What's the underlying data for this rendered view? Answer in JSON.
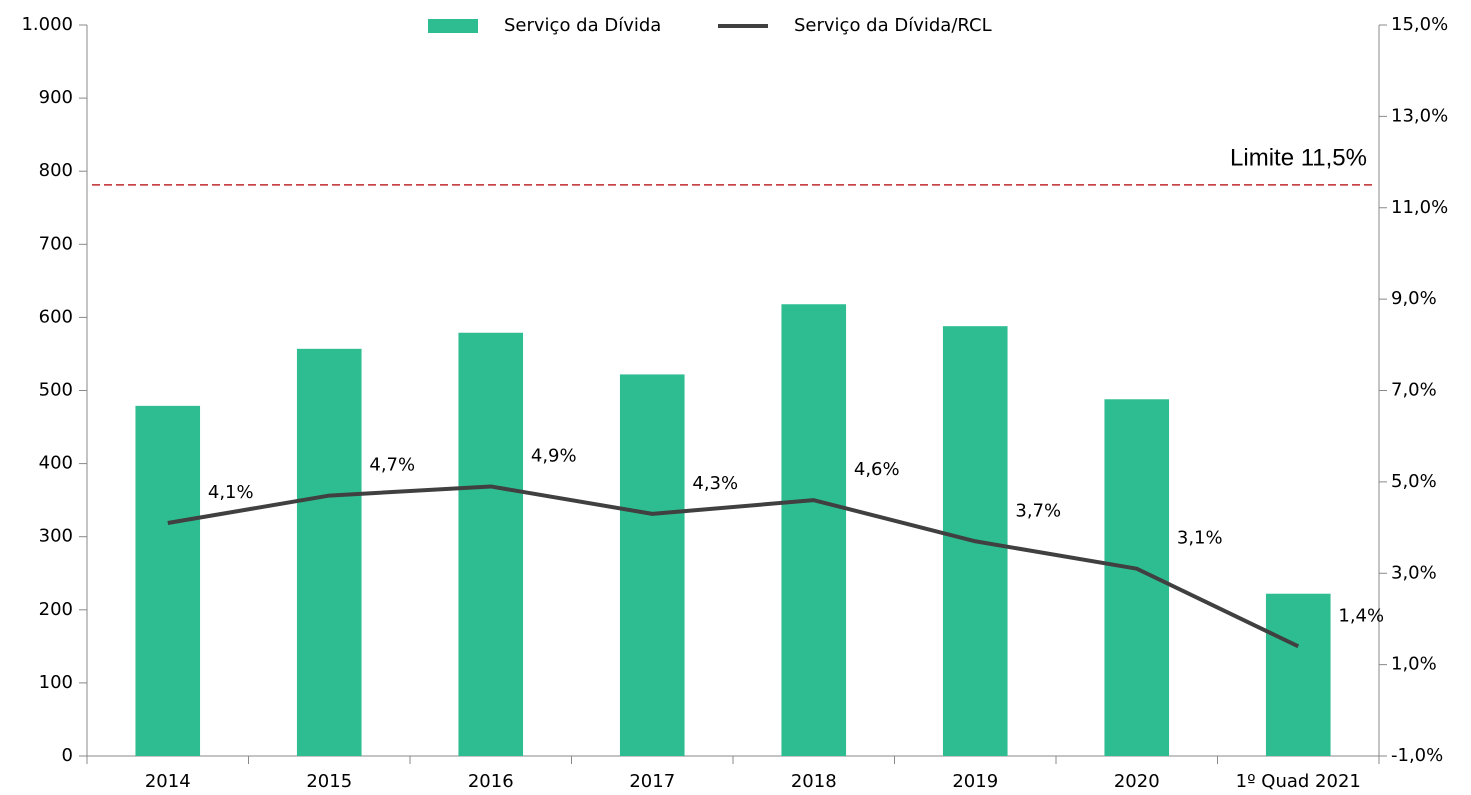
{
  "chart_data": {
    "type": "bar_line",
    "categories": [
      "2014",
      "2015",
      "2016",
      "2017",
      "2018",
      "2019",
      "2020",
      "1º Quad 2021"
    ],
    "series": [
      {
        "name": "Serviço da Dívida",
        "type": "bar",
        "color": "#2ebd91",
        "values": [
          479,
          557,
          579,
          522,
          618,
          588,
          488,
          222
        ]
      },
      {
        "name": "Serviço da Dívida/RCL",
        "type": "line",
        "axis": "y2",
        "color": "#404040",
        "values": [
          4.1,
          4.7,
          4.9,
          4.3,
          4.6,
          3.7,
          3.1,
          1.4
        ],
        "value_labels": [
          "4,1%",
          "4,7%",
          "4,9%",
          "4,3%",
          "4,6%",
          "3,7%",
          "3,1%",
          "1,4%"
        ]
      }
    ],
    "ylim": [
      0,
      1000
    ],
    "yticks": [
      0,
      100,
      200,
      300,
      400,
      500,
      600,
      700,
      800,
      900,
      {
        "value": 1000,
        "label": "1.000"
      }
    ],
    "y2lim": [
      -1,
      15
    ],
    "y2ticks": [
      {
        "value": -1,
        "label": "-1,0%"
      },
      {
        "value": 1,
        "label": "1,0%"
      },
      {
        "value": 3,
        "label": "3,0%"
      },
      {
        "value": 5,
        "label": "5,0%"
      },
      {
        "value": 7,
        "label": "7,0%"
      },
      {
        "value": 9,
        "label": "9,0%"
      },
      {
        "value": 11,
        "label": "11,0%"
      },
      {
        "value": 13,
        "label": "13,0%"
      },
      {
        "value": 15,
        "label": "15,0%"
      }
    ],
    "limit": {
      "value": 11.5,
      "label": "Limite 11,5%",
      "color": "#c0282d"
    },
    "legend": "top"
  }
}
